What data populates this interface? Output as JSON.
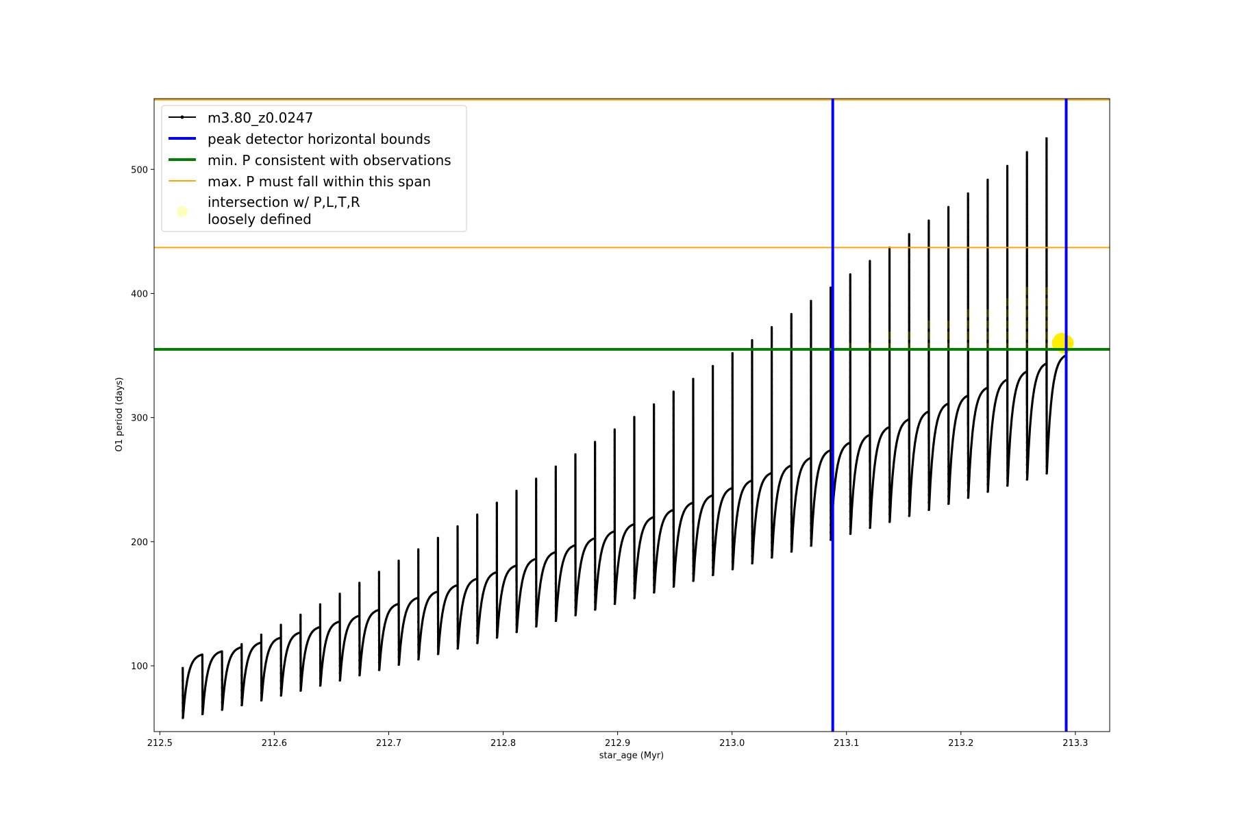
{
  "chart_data": {
    "type": "line",
    "xlabel": "star_age (Myr)",
    "ylabel": "O1 period (days)",
    "xlim": [
      212.495,
      213.33
    ],
    "ylim": [
      47,
      557
    ],
    "xticks": [
      212.5,
      212.6,
      212.7,
      212.8,
      212.9,
      213.0,
      213.1,
      213.2,
      213.3
    ],
    "xtick_labels": [
      "212.5",
      "212.6",
      "212.7",
      "212.8",
      "212.9",
      "213.0",
      "213.1",
      "213.2",
      "213.3"
    ],
    "yticks": [
      100,
      200,
      300,
      400,
      500
    ],
    "ytick_labels": [
      "100",
      "200",
      "300",
      "400",
      "500"
    ],
    "grid": false,
    "legend_position": "upper-left",
    "series": [
      {
        "name": "m3.80_z0.0247",
        "color": "#000000",
        "style": "line-with-dot-markers",
        "description_values": {
          "pulse_start": 212.52,
          "pulse_end": 213.292,
          "cycle_count": 45,
          "envelope_top_start": 110,
          "envelope_top_end": 352,
          "spike_peak_start": 98,
          "spike_peak_end": 525,
          "minimum_start": 58,
          "minimum_end": 255
        }
      },
      {
        "name": "peak detector horizontal bounds",
        "color": "#0000ff",
        "kind": "vline",
        "x": [
          213.088,
          213.292
        ]
      },
      {
        "name": "min. P consistent with observations",
        "color": "#008000",
        "kind": "hline",
        "y": [
          355
        ]
      },
      {
        "name": "max. P must fall within this span",
        "color": "#ffa500",
        "kind": "hline",
        "y": [
          437,
          556
        ]
      },
      {
        "name": "intersection w/ P,L,T,R\nloosely defined",
        "color": "#ffff00",
        "kind": "scatter",
        "highlight_point": {
          "x": 213.289,
          "y": 360
        }
      }
    ],
    "legend": [
      {
        "label": "m3.80_z0.0247",
        "color": "#000000",
        "kind": "line-marker"
      },
      {
        "label": "peak detector horizontal bounds",
        "color": "#0000ff",
        "kind": "thick-line"
      },
      {
        "label": "min. P consistent with observations",
        "color": "#008000",
        "kind": "thick-line"
      },
      {
        "label": "max. P must fall within this span",
        "color": "#ffa500",
        "kind": "thin-line"
      },
      {
        "label_line1": "intersection w/ P,L,T,R",
        "label_line2": "loosely defined",
        "color": "#ffff99",
        "kind": "dot"
      }
    ]
  }
}
